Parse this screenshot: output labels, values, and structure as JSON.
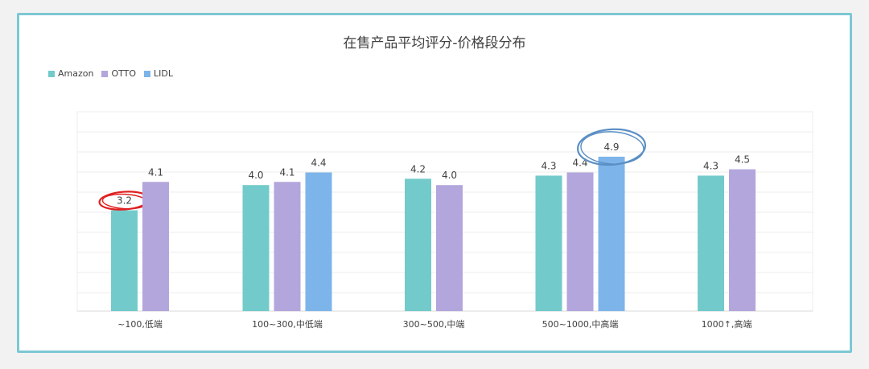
{
  "colors": {
    "Amazon": "#72cbca",
    "OTTO": "#b3a6dc",
    "LIDL": "#7db5ea"
  },
  "chart_data": {
    "type": "bar",
    "title": "在售产品平均评分-价格段分布",
    "categories": [
      "~100,低端",
      "100~300,中低端",
      "300~500,中端",
      "500~1000,中高端",
      "1000↑,高端"
    ],
    "series": [
      {
        "name": "Amazon",
        "values": [
          3.2,
          4.0,
          4.2,
          4.3,
          4.3
        ]
      },
      {
        "name": "OTTO",
        "values": [
          4.1,
          4.1,
          4.0,
          4.4,
          4.5
        ]
      },
      {
        "name": "LIDL",
        "values": [
          null,
          4.4,
          null,
          4.9,
          null
        ]
      }
    ],
    "data_labels": [
      [
        "3.2",
        "4.0",
        "4.2",
        "4.3",
        "4.3"
      ],
      [
        "4.1",
        "4.1",
        "4.0",
        "4.4",
        "4.5"
      ],
      [
        null,
        "4.4",
        null,
        "4.9",
        null
      ]
    ],
    "highlighted": [
      {
        "series": "Amazon",
        "category": "~100,低端",
        "color": "#e02020"
      },
      {
        "series": "LIDL",
        "category": "500~1000,中高端",
        "color": "#5b8fc4"
      }
    ],
    "ylim": [
      0,
      5
    ],
    "grid": true,
    "legend_position": "top-left"
  }
}
